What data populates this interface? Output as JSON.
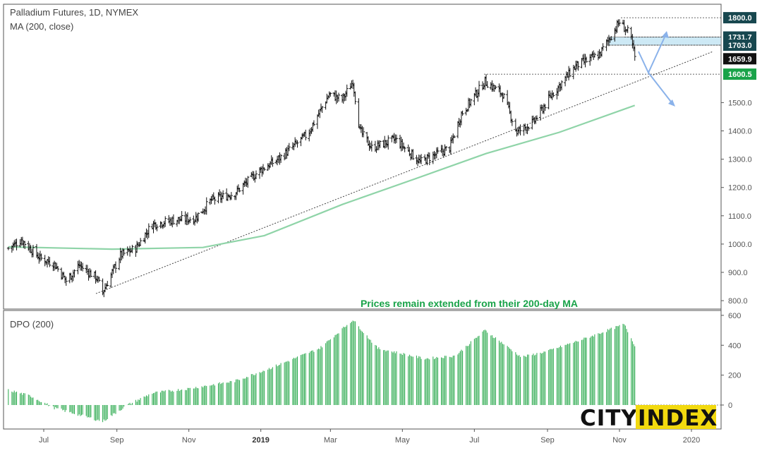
{
  "title": "Palladium Futures, 1D, NYMEX",
  "indicator": "MA (200, close)",
  "annotation": "Prices remain extended from their 200-day MA",
  "logo": {
    "left": "CITY",
    "right": "INDEX"
  },
  "colors": {
    "ma": "#8fd4a8",
    "dpo": "#27a84a",
    "annotation": "#19a349",
    "level_dark": "#17474f",
    "level_green": "#19a349",
    "zone": "#cde9f5",
    "arrow": "#8ab2ea",
    "logo_yellow": "#f2d90f"
  },
  "chart_data": [
    {
      "type": "ohlc",
      "title": "Palladium Futures, 1D, NYMEX",
      "ylim": [
        775,
        1820
      ],
      "yticks": [
        "800.0",
        "900.0",
        "1000.0",
        "1100.0",
        "1200.0",
        "1300.0",
        "1400.0",
        "1500.0",
        "1600.0",
        "1700.0",
        "1800.0"
      ],
      "xticks": [
        "Jul",
        "Sep",
        "Nov",
        "2019",
        "Mar",
        "May",
        "Jul",
        "Sep",
        "Nov",
        "2020"
      ],
      "price_path": [
        {
          "date": "2018-06-01",
          "close": 985
        },
        {
          "date": "2018-06-12",
          "close": 1015
        },
        {
          "date": "2018-06-28",
          "close": 950
        },
        {
          "date": "2018-07-10",
          "close": 930
        },
        {
          "date": "2018-07-20",
          "close": 870
        },
        {
          "date": "2018-07-31",
          "close": 925
        },
        {
          "date": "2018-08-15",
          "close": 880
        },
        {
          "date": "2018-08-20",
          "close": 830
        },
        {
          "date": "2018-09-04",
          "close": 960
        },
        {
          "date": "2018-09-17",
          "close": 985
        },
        {
          "date": "2018-10-01",
          "close": 1070
        },
        {
          "date": "2018-10-20",
          "close": 1085
        },
        {
          "date": "2018-11-06",
          "close": 1090
        },
        {
          "date": "2018-11-20",
          "close": 1155
        },
        {
          "date": "2018-12-10",
          "close": 1180
        },
        {
          "date": "2018-12-31",
          "close": 1260
        },
        {
          "date": "2019-01-16",
          "close": 1300
        },
        {
          "date": "2019-02-10",
          "close": 1390
        },
        {
          "date": "2019-02-28",
          "close": 1530
        },
        {
          "date": "2019-03-11",
          "close": 1510
        },
        {
          "date": "2019-03-20",
          "close": 1575
        },
        {
          "date": "2019-03-26",
          "close": 1400
        },
        {
          "date": "2019-04-05",
          "close": 1340
        },
        {
          "date": "2019-04-25",
          "close": 1370
        },
        {
          "date": "2019-05-16",
          "close": 1290
        },
        {
          "date": "2019-06-10",
          "close": 1340
        },
        {
          "date": "2019-06-20",
          "close": 1460
        },
        {
          "date": "2019-07-10",
          "close": 1575
        },
        {
          "date": "2019-07-25",
          "close": 1530
        },
        {
          "date": "2019-08-06",
          "close": 1395
        },
        {
          "date": "2019-08-20",
          "close": 1430
        },
        {
          "date": "2019-09-05",
          "close": 1530
        },
        {
          "date": "2019-09-25",
          "close": 1630
        },
        {
          "date": "2019-10-15",
          "close": 1670
        },
        {
          "date": "2019-11-01",
          "close": 1785
        },
        {
          "date": "2019-11-10",
          "close": 1740
        },
        {
          "date": "2019-11-14",
          "close": 1660
        }
      ],
      "ma_path": [
        {
          "date": "2018-06-01",
          "close": 990
        },
        {
          "date": "2018-08-28",
          "close": 982
        },
        {
          "date": "2018-11-13",
          "close": 988
        },
        {
          "date": "2019-01-04",
          "close": 1030
        },
        {
          "date": "2019-03-11",
          "close": 1140
        },
        {
          "date": "2019-05-10",
          "close": 1228
        },
        {
          "date": "2019-07-11",
          "close": 1320
        },
        {
          "date": "2019-09-11",
          "close": 1395
        },
        {
          "date": "2019-11-14",
          "close": 1490
        }
      ],
      "levels": [
        {
          "label": "1800.0",
          "value": 1800.0
        },
        {
          "label": "1731.7",
          "value": 1731.7
        },
        {
          "label": "1703.0",
          "value": 1703.0
        },
        {
          "label": "1659.9",
          "value": 1659.9
        },
        {
          "label": "1600.5",
          "value": 1600.5
        }
      ]
    },
    {
      "type": "bar",
      "title": "DPO (200)",
      "ylim": [
        -70,
        610
      ],
      "yticks": [
        "0",
        "200",
        "400",
        "600"
      ],
      "value_path": [
        {
          "date": "2018-06-01",
          "value": 100
        },
        {
          "date": "2018-06-20",
          "value": 60
        },
        {
          "date": "2018-07-10",
          "value": -20
        },
        {
          "date": "2018-08-20",
          "value": -110
        },
        {
          "date": "2018-09-10",
          "value": 0
        },
        {
          "date": "2018-10-01",
          "value": 80
        },
        {
          "date": "2018-11-01",
          "value": 110
        },
        {
          "date": "2018-12-10",
          "value": 160
        },
        {
          "date": "2019-01-10",
          "value": 250
        },
        {
          "date": "2019-02-20",
          "value": 380
        },
        {
          "date": "2019-03-20",
          "value": 570
        },
        {
          "date": "2019-04-10",
          "value": 380
        },
        {
          "date": "2019-05-20",
          "value": 310
        },
        {
          "date": "2019-06-15",
          "value": 330
        },
        {
          "date": "2019-07-10",
          "value": 500
        },
        {
          "date": "2019-08-10",
          "value": 320
        },
        {
          "date": "2019-09-01",
          "value": 360
        },
        {
          "date": "2019-10-01",
          "value": 440
        },
        {
          "date": "2019-11-05",
          "value": 540
        },
        {
          "date": "2019-11-14",
          "value": 400
        }
      ]
    }
  ]
}
